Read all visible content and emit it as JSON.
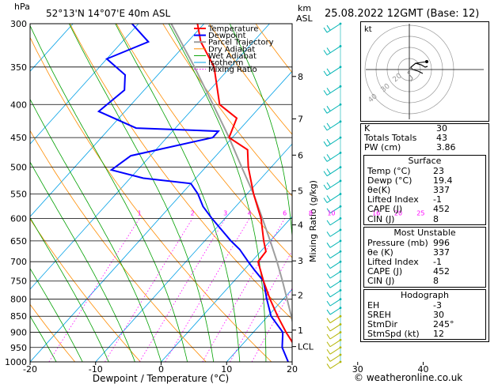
{
  "header": {
    "station": "52°13'N  14°07'E  40m  ASL",
    "datetime": "25.08.2022  12GMT  (Base: 12)",
    "hpa_label": "hPa",
    "km_label": "km",
    "asl_label": "ASL"
  },
  "legend": [
    "Temperature",
    "Dewpoint",
    "Parcel Trajectory",
    "Dry Adiabat",
    "Wet Adiabat",
    "Isotherm",
    "Mixing Ratio"
  ],
  "colors": {
    "temperature": "#ff0000",
    "dewpoint": "#0000ff",
    "parcel": "#9e9e9e",
    "dry_adiabat": "#ff8c00",
    "wet_adiabat": "#00a000",
    "isotherm": "#00a0e6",
    "mixing_ratio": "#ff00ff",
    "wind": "#00b4b4"
  },
  "chart_data": {
    "type": "skew-t",
    "xlabel": "Dewpoint / Temperature (°C)",
    "ylabel": "Mixing Ratio (g/kg)",
    "x_ticks": [
      -40,
      -30,
      -20,
      -10,
      0,
      10,
      20,
      30,
      40
    ],
    "pressure_levels": [
      300,
      350,
      400,
      450,
      500,
      550,
      600,
      650,
      700,
      750,
      800,
      850,
      900,
      950,
      1000
    ],
    "altitude_labels": [
      {
        "km": "8",
        "p": 362
      },
      {
        "km": "7",
        "p": 421
      },
      {
        "km": "6",
        "p": 479
      },
      {
        "km": "5",
        "p": 544
      },
      {
        "km": "4",
        "p": 614
      },
      {
        "km": "3",
        "p": 698
      },
      {
        "km": "2",
        "p": 788
      },
      {
        "km": "1",
        "p": 893
      },
      {
        "km": "LCL",
        "p": 947
      }
    ],
    "mixing_ratio_labels": [
      "1",
      "2",
      "3",
      "4",
      "6",
      "8",
      "10",
      "16",
      "20",
      "25"
    ],
    "temperature": [
      [
        1000,
        23
      ],
      [
        975,
        20.5
      ],
      [
        950,
        18.5
      ],
      [
        925,
        16.8
      ],
      [
        900,
        15
      ],
      [
        850,
        11.5
      ],
      [
        800,
        8
      ],
      [
        750,
        4.5
      ],
      [
        700,
        1
      ],
      [
        675,
        0.8
      ],
      [
        650,
        -1
      ],
      [
        600,
        -4.5
      ],
      [
        550,
        -9
      ],
      [
        500,
        -13.5
      ],
      [
        470,
        -16
      ],
      [
        450,
        -20.5
      ],
      [
        420,
        -22
      ],
      [
        400,
        -26.5
      ],
      [
        350,
        -32.5
      ],
      [
        320,
        -38
      ],
      [
        300,
        -41
      ]
    ],
    "dewpoint": [
      [
        1000,
        19.4
      ],
      [
        950,
        16.5
      ],
      [
        900,
        14.5
      ],
      [
        850,
        10.5
      ],
      [
        800,
        7.5
      ],
      [
        750,
        4.5
      ],
      [
        720,
        1.5
      ],
      [
        700,
        -0.5
      ],
      [
        670,
        -3.5
      ],
      [
        650,
        -6
      ],
      [
        600,
        -12
      ],
      [
        575,
        -15
      ],
      [
        550,
        -17.5
      ],
      [
        530,
        -20
      ],
      [
        520,
        -28
      ],
      [
        505,
        -34
      ],
      [
        480,
        -33
      ],
      [
        450,
        -23
      ],
      [
        440,
        -23
      ],
      [
        435,
        -36
      ],
      [
        410,
        -44
      ],
      [
        380,
        -43
      ],
      [
        360,
        -45
      ],
      [
        340,
        -50
      ],
      [
        320,
        -46
      ],
      [
        300,
        -51
      ]
    ],
    "parcel": [
      [
        1000,
        23
      ],
      [
        947,
        18.5
      ],
      [
        900,
        16.3
      ],
      [
        850,
        13.6
      ],
      [
        800,
        10.6
      ],
      [
        750,
        7.4
      ],
      [
        700,
        3.9
      ],
      [
        650,
        0
      ],
      [
        600,
        -4.3
      ],
      [
        550,
        -9
      ],
      [
        500,
        -14.5
      ],
      [
        450,
        -20.5
      ],
      [
        400,
        -27.5
      ],
      [
        350,
        -35.5
      ],
      [
        300,
        -45
      ]
    ],
    "wind_pressures": [
      300,
      325,
      350,
      375,
      400,
      425,
      450,
      475,
      500,
      525,
      550,
      575,
      600,
      625,
      650,
      675,
      700,
      725,
      750,
      775,
      800,
      825,
      850,
      875,
      900,
      925,
      950,
      975,
      1000
    ]
  },
  "hodograph": {
    "label": "kt",
    "ring_labels": [
      "40",
      "30",
      "20"
    ]
  },
  "indices": [
    {
      "label": "K",
      "value": "30"
    },
    {
      "label": "Totals Totals",
      "value": "43"
    },
    {
      "label": "PW (cm)",
      "value": "3.86"
    }
  ],
  "surface": {
    "title": "Surface",
    "rows": [
      {
        "label": "Temp (°C)",
        "value": "23"
      },
      {
        "label": "Dewp (°C)",
        "value": "19.4"
      },
      {
        "label": "θe(K)",
        "value": "337"
      },
      {
        "label": "Lifted Index",
        "value": "-1"
      },
      {
        "label": "CAPE (J)",
        "value": "452"
      },
      {
        "label": "CIN (J)",
        "value": "8"
      }
    ]
  },
  "most_unstable": {
    "title": "Most Unstable",
    "rows": [
      {
        "label": "Pressure (mb)",
        "value": "996"
      },
      {
        "label": "θe (K)",
        "value": "337"
      },
      {
        "label": "Lifted Index",
        "value": "-1"
      },
      {
        "label": "CAPE (J)",
        "value": "452"
      },
      {
        "label": "CIN (J)",
        "value": "8"
      }
    ]
  },
  "hodograph_table": {
    "title": "Hodograph",
    "rows": [
      {
        "label": "EH",
        "value": "-3"
      },
      {
        "label": "SREH",
        "value": "30"
      },
      {
        "label": "StmDir",
        "value": "245°"
      },
      {
        "label": "StmSpd (kt)",
        "value": "12"
      }
    ]
  },
  "credit": "© weatheronline.co.uk"
}
